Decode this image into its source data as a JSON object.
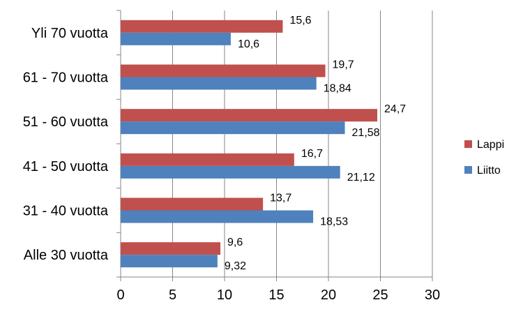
{
  "chart_data": {
    "type": "bar",
    "orientation": "horizontal",
    "categories": [
      "Yli 70 vuotta",
      "61 - 70 vuotta",
      "51 - 60 vuotta",
      "41 - 50 vuotta",
      "31 - 40 vuotta",
      "Alle 30 vuotta"
    ],
    "series": [
      {
        "name": "Lappi",
        "color": "#c0504d",
        "values": [
          15.6,
          19.7,
          24.7,
          16.7,
          13.7,
          9.6
        ],
        "labels": [
          "15,6",
          "19,7",
          "24,7",
          "16,7",
          "13,7",
          "9,6"
        ]
      },
      {
        "name": "Liitto",
        "color": "#4f81bd",
        "values": [
          10.6,
          18.84,
          21.58,
          21.12,
          18.53,
          9.32
        ],
        "labels": [
          "10,6",
          "18,84",
          "21,58",
          "21,12",
          "18,53",
          "9,32"
        ]
      }
    ],
    "xlim": [
      0,
      30
    ],
    "xticks": [
      0,
      5,
      10,
      15,
      20,
      25,
      30
    ],
    "grid": "vertical",
    "legend": "right"
  }
}
